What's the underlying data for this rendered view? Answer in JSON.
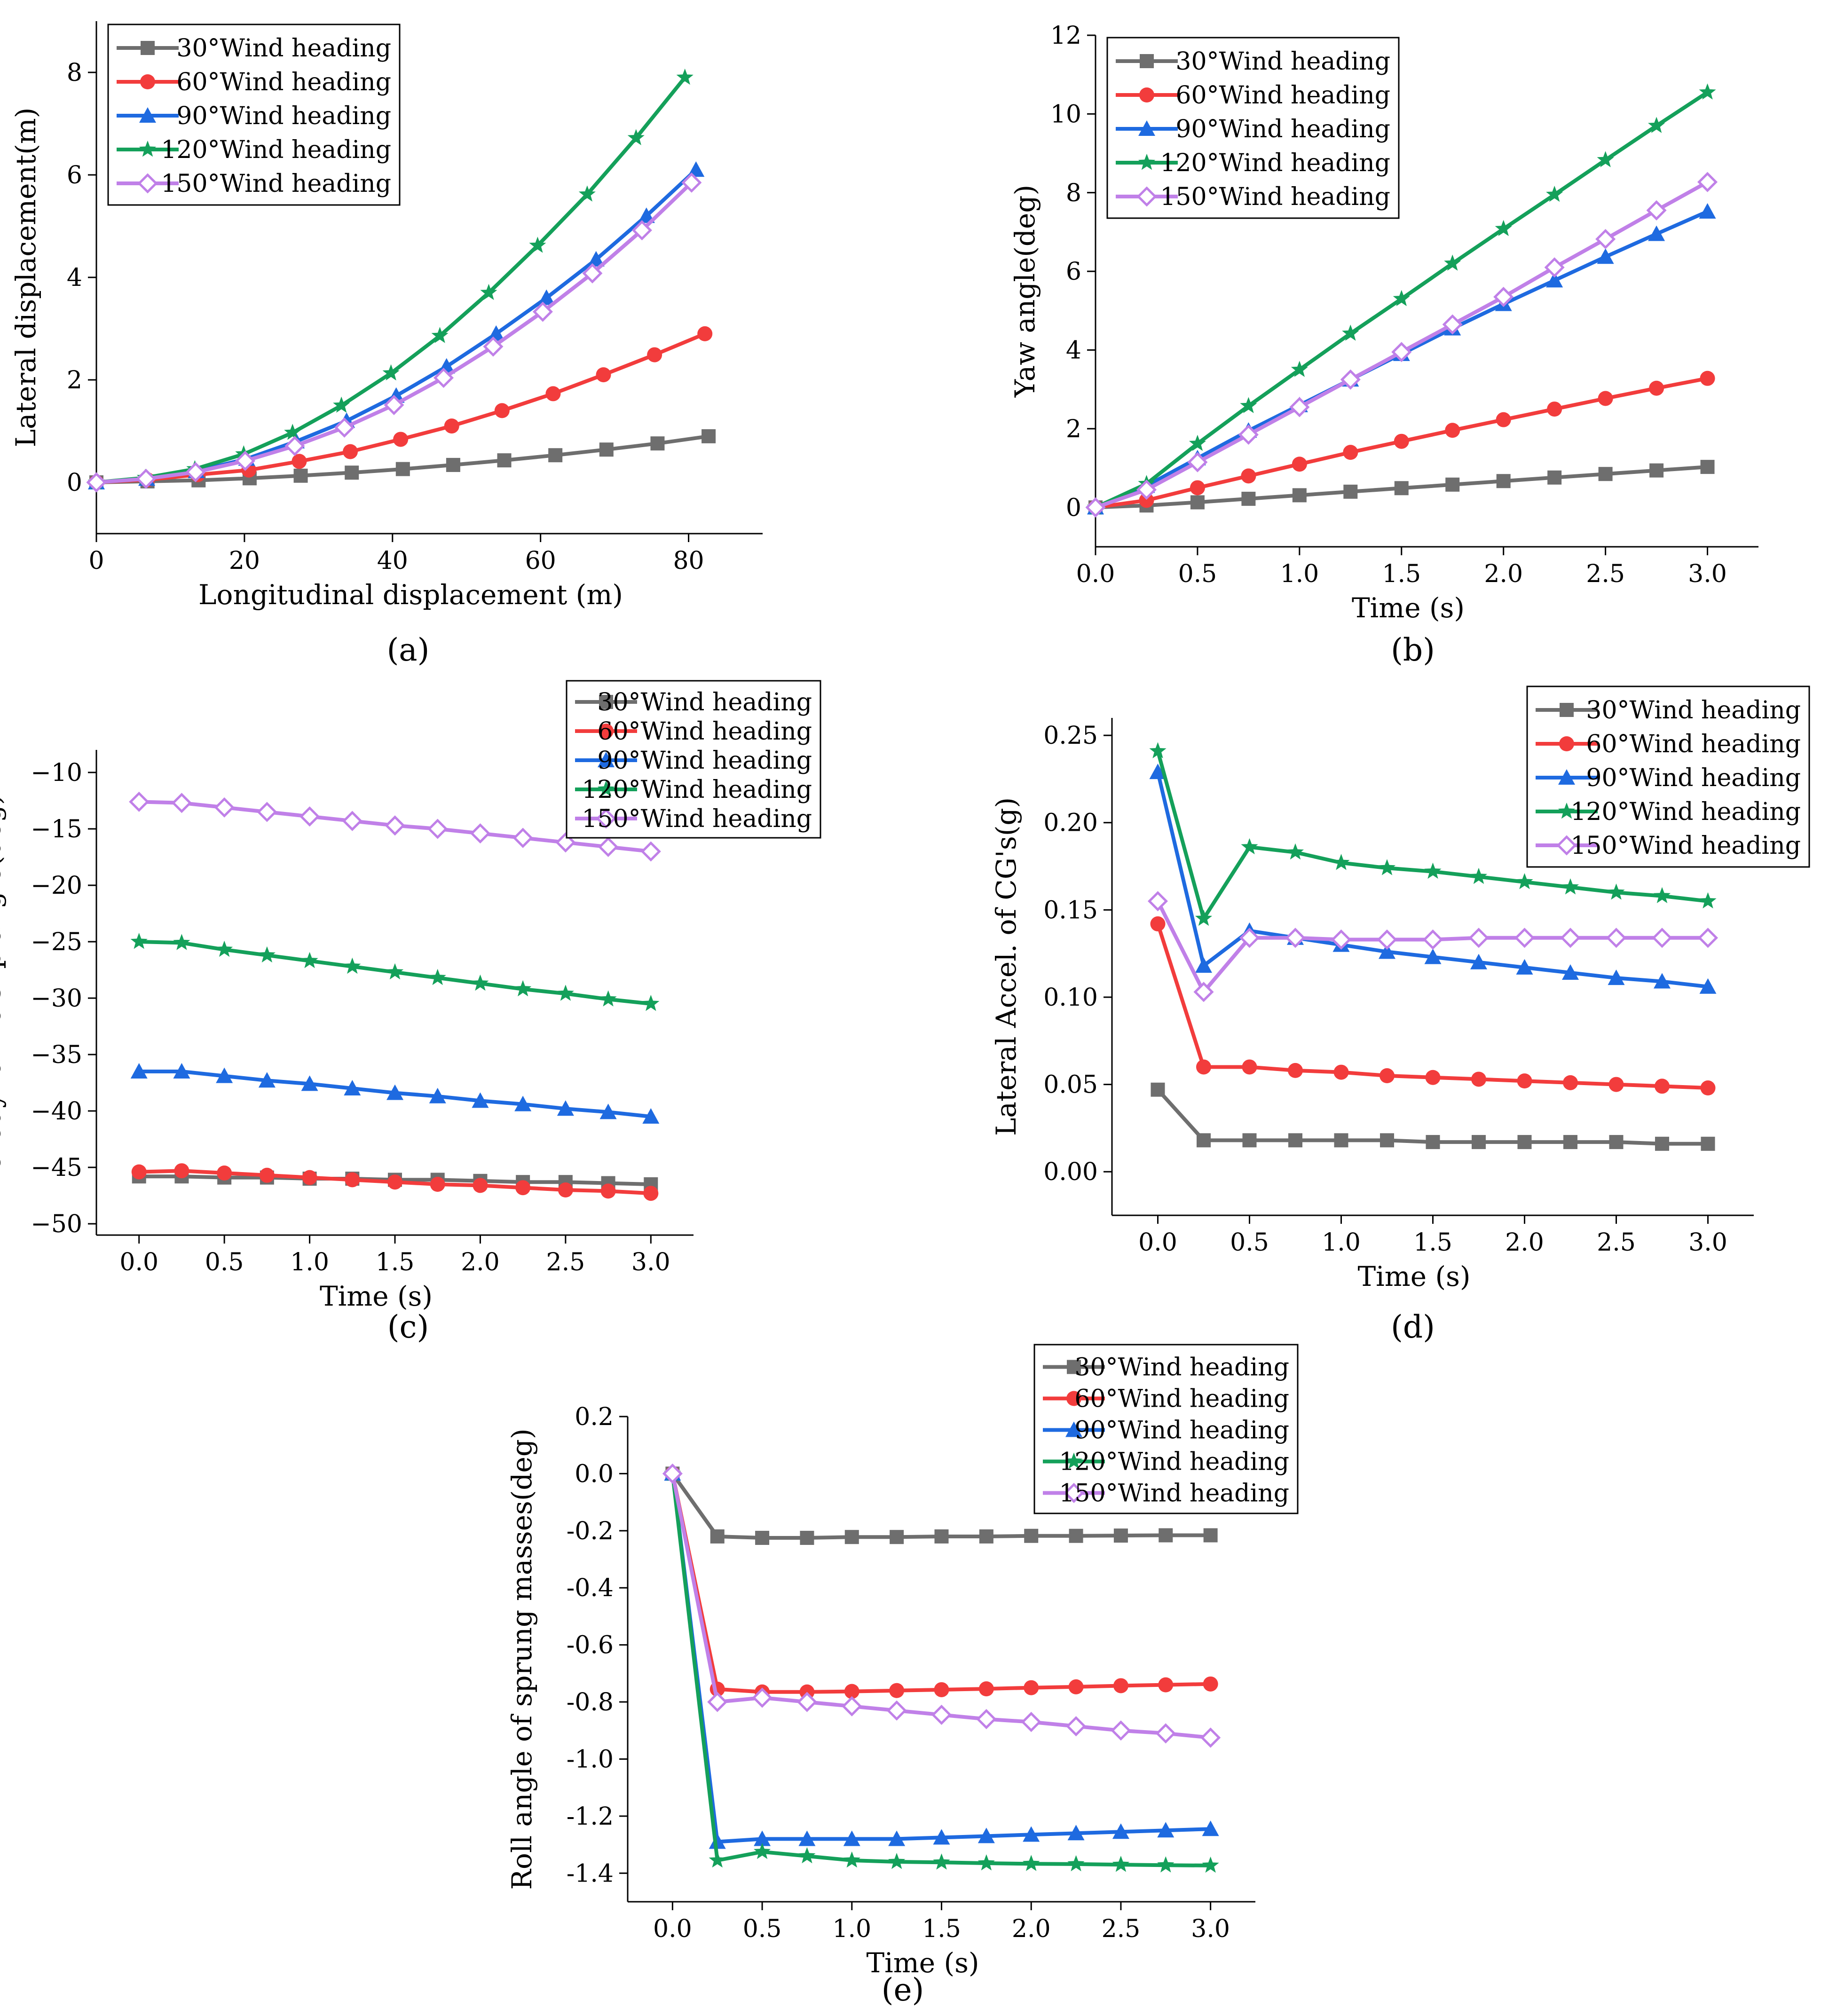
{
  "figure": {
    "legend_labels": [
      "30°Wind heading",
      "60°Wind heading",
      "90°Wind heading",
      "120°Wind heading",
      "150°Wind heading"
    ],
    "series_colors": [
      "#6e6e6e",
      "#f23c3c",
      "#1e6ae0",
      "#14a05a",
      "#c080e8"
    ],
    "series_markers": [
      "square",
      "circle",
      "triangle",
      "star",
      "diamond"
    ]
  },
  "chart_data": [
    {
      "type": "line",
      "panel": "a",
      "caption": "(a)",
      "title": "",
      "xlabel": "Longitudinal displacement (m)",
      "ylabel": "Lateral displacement(m)",
      "xlim": [
        0,
        90
      ],
      "ylim": [
        -1,
        9
      ],
      "xticks": [
        0,
        20,
        40,
        60,
        80
      ],
      "yticks": [
        0,
        2,
        4,
        6,
        8
      ],
      "xtick_labels": [
        "0",
        "20",
        "40",
        "60",
        "80"
      ],
      "ytick_labels": [
        "0",
        "2",
        "4",
        "6",
        "8"
      ],
      "legend_position": "top-left",
      "series": [
        {
          "name": "30°Wind heading",
          "x": [
            0,
            6.9,
            13.8,
            20.7,
            27.6,
            34.5,
            41.4,
            48.2,
            55.1,
            62.0,
            68.9,
            75.8,
            82.7
          ],
          "y": [
            0,
            0.02,
            0.04,
            0.08,
            0.13,
            0.19,
            0.26,
            0.34,
            0.43,
            0.53,
            0.64,
            0.76,
            0.9
          ]
        },
        {
          "name": "60°Wind heading",
          "x": [
            0,
            6.9,
            13.7,
            20.6,
            27.4,
            34.3,
            41.1,
            48.0,
            54.8,
            61.7,
            68.5,
            75.4,
            82.2
          ],
          "y": [
            0,
            0.05,
            0.15,
            0.24,
            0.41,
            0.6,
            0.84,
            1.1,
            1.4,
            1.73,
            2.1,
            2.49,
            2.9
          ]
        },
        {
          "name": "90°Wind heading",
          "x": [
            0,
            6.8,
            13.5,
            20.3,
            27.0,
            33.8,
            40.5,
            47.3,
            54.0,
            60.8,
            67.5,
            74.3,
            81.0
          ],
          "y": [
            0,
            0.07,
            0.22,
            0.46,
            0.8,
            1.2,
            1.69,
            2.26,
            2.9,
            3.6,
            4.35,
            5.2,
            6.1
          ]
        },
        {
          "name": "120°Wind heading",
          "x": [
            0,
            6.6,
            13.3,
            19.9,
            26.5,
            33.1,
            39.8,
            46.4,
            53.0,
            59.6,
            66.3,
            72.9,
            79.5
          ],
          "y": [
            0,
            0.09,
            0.26,
            0.55,
            0.97,
            1.5,
            2.13,
            2.86,
            3.7,
            4.62,
            5.62,
            6.72,
            7.9
          ]
        },
        {
          "name": "150°Wind heading",
          "x": [
            0,
            6.7,
            13.4,
            20.1,
            26.8,
            33.5,
            40.2,
            46.9,
            53.6,
            60.3,
            67.0,
            73.7,
            80.4
          ],
          "y": [
            0,
            0.07,
            0.2,
            0.42,
            0.71,
            1.07,
            1.51,
            2.04,
            2.65,
            3.33,
            4.08,
            4.92,
            5.85
          ]
        }
      ]
    },
    {
      "type": "line",
      "panel": "b",
      "caption": "(b)",
      "title": "",
      "xlabel": "Time (s)",
      "ylabel": "Yaw angle(deg)",
      "xlim": [
        0,
        3.25
      ],
      "ylim": [
        -1,
        12
      ],
      "xticks": [
        0,
        0.5,
        1.0,
        1.5,
        2.0,
        2.5,
        3.0
      ],
      "yticks": [
        0,
        2,
        4,
        6,
        8,
        10,
        12
      ],
      "xtick_labels": [
        "0.0",
        "0.5",
        "1.0",
        "1.5",
        "2.0",
        "2.5",
        "3.0"
      ],
      "ytick_labels": [
        "0",
        "2",
        "4",
        "6",
        "8",
        "10",
        "12"
      ],
      "legend_position": "top-left",
      "series": [
        {
          "name": "30°Wind heading",
          "x": [
            0,
            0.25,
            0.5,
            0.75,
            1.0,
            1.25,
            1.5,
            1.75,
            2.0,
            2.25,
            2.5,
            2.75,
            3.0
          ],
          "y": [
            0,
            0.05,
            0.13,
            0.22,
            0.31,
            0.4,
            0.49,
            0.58,
            0.67,
            0.76,
            0.85,
            0.94,
            1.03
          ]
        },
        {
          "name": "60°Wind heading",
          "x": [
            0,
            0.25,
            0.5,
            0.75,
            1.0,
            1.25,
            1.5,
            1.75,
            2.0,
            2.25,
            2.5,
            2.75,
            3.0
          ],
          "y": [
            0,
            0.18,
            0.5,
            0.8,
            1.1,
            1.4,
            1.68,
            1.96,
            2.23,
            2.5,
            2.77,
            3.03,
            3.28
          ]
        },
        {
          "name": "90°Wind heading",
          "x": [
            0,
            0.25,
            0.5,
            0.75,
            1.0,
            1.25,
            1.5,
            1.75,
            2.0,
            2.25,
            2.5,
            2.75,
            3.0
          ],
          "y": [
            0,
            0.55,
            1.25,
            1.95,
            2.6,
            3.25,
            3.9,
            4.55,
            5.17,
            5.77,
            6.37,
            6.95,
            7.52
          ]
        },
        {
          "name": "120°Wind heading",
          "x": [
            0,
            0.25,
            0.5,
            0.75,
            1.0,
            1.25,
            1.5,
            1.75,
            2.0,
            2.25,
            2.5,
            2.75,
            3.0
          ],
          "y": [
            0,
            0.6,
            1.62,
            2.58,
            3.5,
            4.42,
            5.3,
            6.2,
            7.08,
            7.95,
            8.83,
            9.7,
            10.55
          ]
        },
        {
          "name": "150°Wind heading",
          "x": [
            0,
            0.25,
            0.5,
            0.75,
            1.0,
            1.25,
            1.5,
            1.75,
            2.0,
            2.25,
            2.5,
            2.75,
            3.0
          ],
          "y": [
            0,
            0.45,
            1.15,
            1.85,
            2.55,
            3.25,
            3.95,
            4.65,
            5.35,
            6.1,
            6.82,
            7.55,
            8.27
          ]
        }
      ]
    },
    {
      "type": "line",
      "panel": "c",
      "caption": "(c)",
      "title": "",
      "xlabel": "Time (s)",
      "ylabel": "Aerodynamic slip angle(deg)",
      "xlim": [
        -0.25,
        3.25
      ],
      "ylim": [
        -51,
        -8
      ],
      "xticks": [
        0,
        0.5,
        1.0,
        1.5,
        2.0,
        2.5,
        3.0
      ],
      "yticks": [
        -10,
        -15,
        -20,
        -25,
        -30,
        -35,
        -40,
        -45,
        -50
      ],
      "xtick_labels": [
        "0.0",
        "0.5",
        "1.0",
        "1.5",
        "2.0",
        "2.5",
        "3.0"
      ],
      "ytick_labels": [
        "−10",
        "−15",
        "−20",
        "−25",
        "−30",
        "−35",
        "−40",
        "−45",
        "−50"
      ],
      "legend_position": "top-right",
      "series": [
        {
          "name": "30°Wind heading",
          "x": [
            0,
            0.25,
            0.5,
            0.75,
            1.0,
            1.25,
            1.5,
            1.75,
            2.0,
            2.25,
            2.5,
            2.75,
            3.0
          ],
          "y": [
            -45.8,
            -45.8,
            -45.9,
            -45.9,
            -46.0,
            -46.0,
            -46.1,
            -46.1,
            -46.2,
            -46.3,
            -46.3,
            -46.4,
            -46.5
          ]
        },
        {
          "name": "60°Wind heading",
          "x": [
            0,
            0.25,
            0.5,
            0.75,
            1.0,
            1.25,
            1.5,
            1.75,
            2.0,
            2.25,
            2.5,
            2.75,
            3.0
          ],
          "y": [
            -45.4,
            -45.3,
            -45.5,
            -45.7,
            -45.9,
            -46.1,
            -46.3,
            -46.5,
            -46.6,
            -46.8,
            -47.0,
            -47.1,
            -47.3
          ]
        },
        {
          "name": "90°Wind heading",
          "x": [
            0,
            0.25,
            0.5,
            0.75,
            1.0,
            1.25,
            1.5,
            1.75,
            2.0,
            2.25,
            2.5,
            2.75,
            3.0
          ],
          "y": [
            -36.5,
            -36.5,
            -36.9,
            -37.3,
            -37.6,
            -38.0,
            -38.4,
            -38.7,
            -39.1,
            -39.4,
            -39.8,
            -40.1,
            -40.5
          ]
        },
        {
          "name": "120°Wind heading",
          "x": [
            0,
            0.25,
            0.5,
            0.75,
            1.0,
            1.25,
            1.5,
            1.75,
            2.0,
            2.25,
            2.5,
            2.75,
            3.0
          ],
          "y": [
            -25.0,
            -25.1,
            -25.7,
            -26.2,
            -26.7,
            -27.2,
            -27.7,
            -28.2,
            -28.7,
            -29.2,
            -29.6,
            -30.1,
            -30.5
          ]
        },
        {
          "name": "150°Wind heading",
          "x": [
            0,
            0.25,
            0.5,
            0.75,
            1.0,
            1.25,
            1.5,
            1.75,
            2.0,
            2.25,
            2.5,
            2.75,
            3.0
          ],
          "y": [
            -12.6,
            -12.7,
            -13.1,
            -13.5,
            -13.9,
            -14.3,
            -14.7,
            -15.0,
            -15.4,
            -15.8,
            -16.2,
            -16.6,
            -17.0
          ]
        }
      ]
    },
    {
      "type": "line",
      "panel": "d",
      "caption": "(d)",
      "title": "",
      "xlabel": "Time (s)",
      "ylabel": "Lateral Accel. of CG's(g)",
      "xlim": [
        -0.25,
        3.25
      ],
      "ylim": [
        -0.025,
        0.26
      ],
      "xticks": [
        0,
        0.5,
        1.0,
        1.5,
        2.0,
        2.5,
        3.0
      ],
      "yticks": [
        0,
        0.05,
        0.1,
        0.15,
        0.2,
        0.25
      ],
      "xtick_labels": [
        "0.0",
        "0.5",
        "1.0",
        "1.5",
        "2.0",
        "2.5",
        "3.0"
      ],
      "ytick_labels": [
        "0.00",
        "0.05",
        "0.10",
        "0.15",
        "0.20",
        "0.25"
      ],
      "legend_position": "top-right",
      "series": [
        {
          "name": "30°Wind heading",
          "x": [
            0,
            0.25,
            0.5,
            0.75,
            1.0,
            1.25,
            1.5,
            1.75,
            2.0,
            2.25,
            2.5,
            2.75,
            3.0
          ],
          "y": [
            0.047,
            0.018,
            0.018,
            0.018,
            0.018,
            0.018,
            0.017,
            0.017,
            0.017,
            0.017,
            0.017,
            0.016,
            0.016
          ]
        },
        {
          "name": "60°Wind heading",
          "x": [
            0,
            0.25,
            0.5,
            0.75,
            1.0,
            1.25,
            1.5,
            1.75,
            2.0,
            2.25,
            2.5,
            2.75,
            3.0
          ],
          "y": [
            0.142,
            0.06,
            0.06,
            0.058,
            0.057,
            0.055,
            0.054,
            0.053,
            0.052,
            0.051,
            0.05,
            0.049,
            0.048
          ]
        },
        {
          "name": "90°Wind heading",
          "x": [
            0,
            0.25,
            0.5,
            0.75,
            1.0,
            1.25,
            1.5,
            1.75,
            2.0,
            2.25,
            2.5,
            2.75,
            3.0
          ],
          "y": [
            0.229,
            0.118,
            0.138,
            0.134,
            0.13,
            0.126,
            0.123,
            0.12,
            0.117,
            0.114,
            0.111,
            0.109,
            0.106
          ]
        },
        {
          "name": "120°Wind heading",
          "x": [
            0,
            0.25,
            0.5,
            0.75,
            1.0,
            1.25,
            1.5,
            1.75,
            2.0,
            2.25,
            2.5,
            2.75,
            3.0
          ],
          "y": [
            0.241,
            0.145,
            0.186,
            0.183,
            0.177,
            0.174,
            0.172,
            0.169,
            0.166,
            0.163,
            0.16,
            0.158,
            0.155
          ]
        },
        {
          "name": "150°Wind heading",
          "x": [
            0,
            0.25,
            0.5,
            0.75,
            1.0,
            1.25,
            1.5,
            1.75,
            2.0,
            2.25,
            2.5,
            2.75,
            3.0
          ],
          "y": [
            0.155,
            0.103,
            0.134,
            0.134,
            0.133,
            0.133,
            0.133,
            0.134,
            0.134,
            0.134,
            0.134,
            0.134,
            0.134
          ]
        }
      ]
    },
    {
      "type": "line",
      "panel": "e",
      "caption": "(e)",
      "title": "",
      "xlabel": "Time (s)",
      "ylabel": "Roll angle of sprung masses(deg)",
      "xlim": [
        -0.25,
        3.25
      ],
      "ylim": [
        -1.5,
        0.2
      ],
      "xticks": [
        0,
        0.5,
        1.0,
        1.5,
        2.0,
        2.5,
        3.0
      ],
      "yticks": [
        0.2,
        0,
        -0.2,
        -0.4,
        -0.6,
        -0.8,
        -1.0,
        -1.2,
        -1.4
      ],
      "xtick_labels": [
        "0.0",
        "0.5",
        "1.0",
        "1.5",
        "2.0",
        "2.5",
        "3.0"
      ],
      "ytick_labels": [
        "0.2",
        "0.0",
        "-0.2",
        "-0.4",
        "-0.6",
        "-0.8",
        "-1.0",
        "-1.2",
        "-1.4"
      ],
      "legend_position": "top-right",
      "series": [
        {
          "name": "30°Wind heading",
          "x": [
            0,
            0.25,
            0.5,
            0.75,
            1.0,
            1.25,
            1.5,
            1.75,
            2.0,
            2.25,
            2.5,
            2.75,
            3.0
          ],
          "y": [
            0,
            -0.22,
            -0.225,
            -0.225,
            -0.222,
            -0.222,
            -0.22,
            -0.22,
            -0.218,
            -0.218,
            -0.217,
            -0.216,
            -0.216
          ]
        },
        {
          "name": "60°Wind heading",
          "x": [
            0,
            0.25,
            0.5,
            0.75,
            1.0,
            1.25,
            1.5,
            1.75,
            2.0,
            2.25,
            2.5,
            2.75,
            3.0
          ],
          "y": [
            0,
            -0.755,
            -0.765,
            -0.765,
            -0.763,
            -0.76,
            -0.757,
            -0.754,
            -0.75,
            -0.747,
            -0.743,
            -0.74,
            -0.737
          ]
        },
        {
          "name": "90°Wind heading",
          "x": [
            0,
            0.25,
            0.5,
            0.75,
            1.0,
            1.25,
            1.5,
            1.75,
            2.0,
            2.25,
            2.5,
            2.75,
            3.0
          ],
          "y": [
            0,
            -1.29,
            -1.28,
            -1.28,
            -1.28,
            -1.28,
            -1.275,
            -1.27,
            -1.265,
            -1.26,
            -1.255,
            -1.25,
            -1.245
          ]
        },
        {
          "name": "120°Wind heading",
          "x": [
            0,
            0.25,
            0.5,
            0.75,
            1.0,
            1.25,
            1.5,
            1.75,
            2.0,
            2.25,
            2.5,
            2.75,
            3.0
          ],
          "y": [
            0,
            -1.355,
            -1.325,
            -1.34,
            -1.355,
            -1.36,
            -1.362,
            -1.365,
            -1.367,
            -1.368,
            -1.37,
            -1.372,
            -1.373
          ]
        },
        {
          "name": "150°Wind heading",
          "x": [
            0,
            0.25,
            0.5,
            0.75,
            1.0,
            1.25,
            1.5,
            1.75,
            2.0,
            2.25,
            2.5,
            2.75,
            3.0
          ],
          "y": [
            0,
            -0.8,
            -0.785,
            -0.8,
            -0.815,
            -0.83,
            -0.845,
            -0.86,
            -0.87,
            -0.885,
            -0.9,
            -0.91,
            -0.925
          ]
        }
      ]
    }
  ]
}
